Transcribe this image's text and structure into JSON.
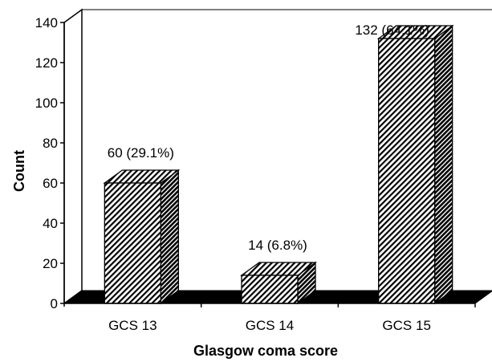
{
  "chart_data": {
    "type": "bar",
    "style": "3d-hatched",
    "categories": [
      "GCS 13",
      "GCS 14",
      "GCS 15"
    ],
    "values": [
      60,
      14,
      132
    ],
    "data_labels": [
      "60 (29.1%)",
      "14 (6.8%)",
      "132 (64.1%)"
    ],
    "title": "",
    "xlabel": "Glasgow coma score",
    "ylabel": "Count",
    "ylim": [
      0,
      140
    ],
    "yticks": [
      0,
      20,
      40,
      60,
      80,
      100,
      120,
      140
    ],
    "grid": false,
    "legend": "none",
    "colors": {
      "bar_stripe": "#000000",
      "bar_fill": "#ffffff",
      "floor": "#000000"
    }
  }
}
